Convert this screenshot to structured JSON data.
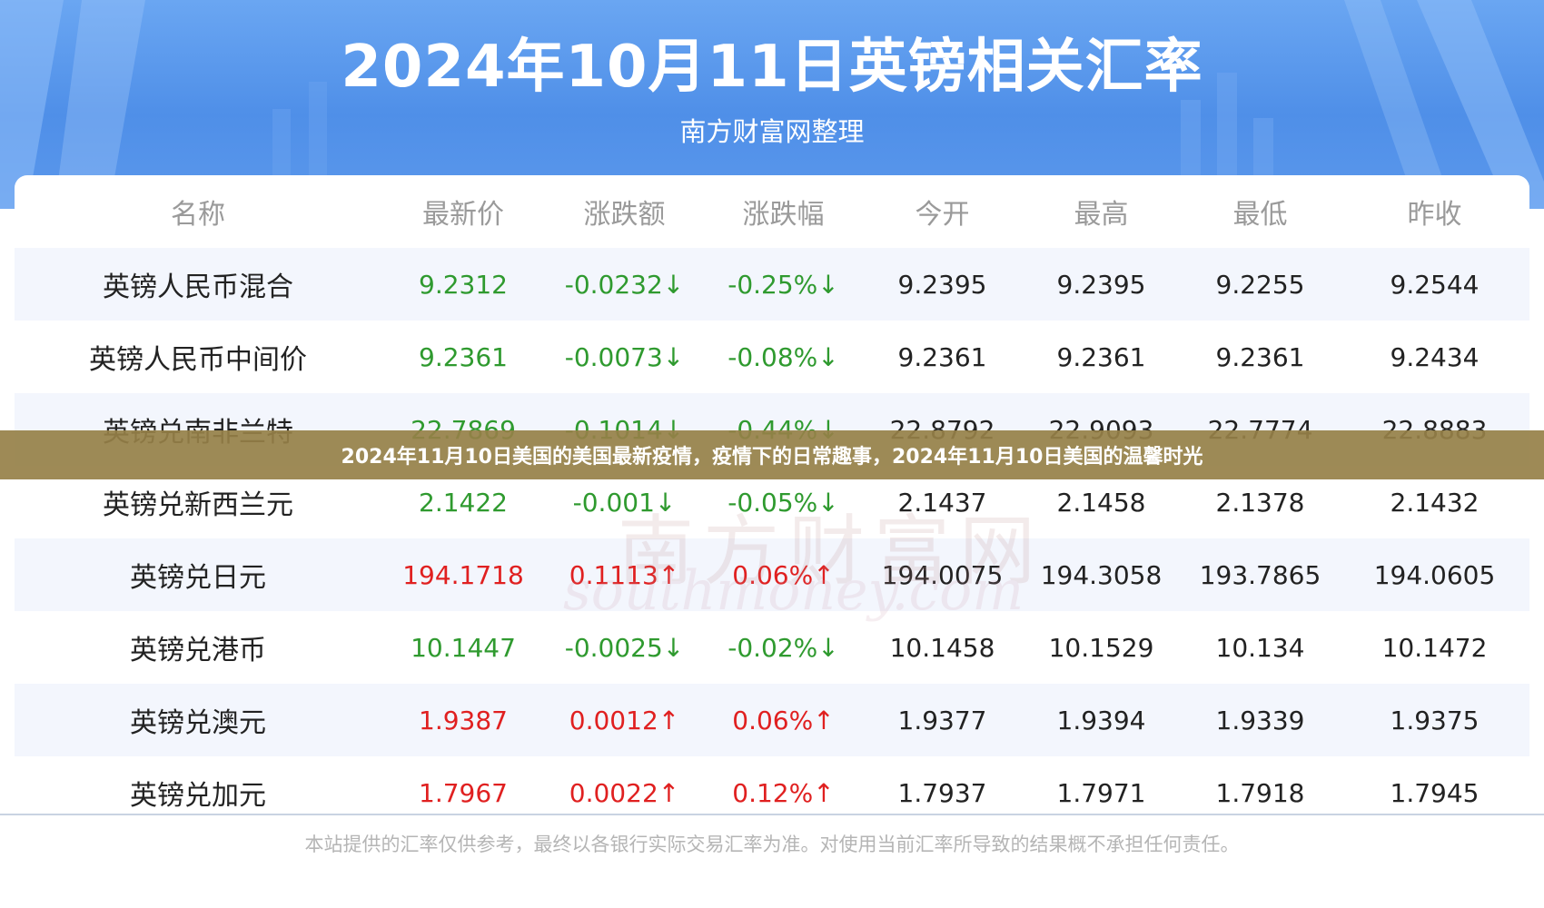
{
  "title": "2024年10月11日英镑相关汇率",
  "subtitle": "南方财富网整理",
  "columns": [
    "名称",
    "最新价",
    "涨跌额",
    "涨跌幅",
    "今开",
    "最高",
    "最低",
    "昨收"
  ],
  "rows": [
    {
      "name": "英镑人民币混合",
      "latest": "9.2312",
      "change": "-0.0232↓",
      "pct": "-0.25%↓",
      "open": "9.2395",
      "high": "9.2395",
      "low": "9.2255",
      "prev": "9.2544",
      "dir": "down"
    },
    {
      "name": "英镑人民币中间价",
      "latest": "9.2361",
      "change": "-0.0073↓",
      "pct": "-0.08%↓",
      "open": "9.2361",
      "high": "9.2361",
      "low": "9.2361",
      "prev": "9.2434",
      "dir": "down"
    },
    {
      "name": "英镑兑南非兰特",
      "latest": "22.7869",
      "change": "-0.1014↓",
      "pct": "-0.44%↓",
      "open": "22.8792",
      "high": "22.9093",
      "low": "22.7774",
      "prev": "22.8883",
      "dir": "down"
    },
    {
      "name": "英镑兑新西兰元",
      "latest": "2.1422",
      "change": "-0.001↓",
      "pct": "-0.05%↓",
      "open": "2.1437",
      "high": "2.1458",
      "low": "2.1378",
      "prev": "2.1432",
      "dir": "down"
    },
    {
      "name": "英镑兑日元",
      "latest": "194.1718",
      "change": "0.1113↑",
      "pct": "0.06%↑",
      "open": "194.0075",
      "high": "194.3058",
      "low": "193.7865",
      "prev": "194.0605",
      "dir": "up"
    },
    {
      "name": "英镑兑港币",
      "latest": "10.1447",
      "change": "-0.0025↓",
      "pct": "-0.02%↓",
      "open": "10.1458",
      "high": "10.1529",
      "low": "10.134",
      "prev": "10.1472",
      "dir": "down"
    },
    {
      "name": "英镑兑澳元",
      "latest": "1.9387",
      "change": "0.0012↑",
      "pct": "0.06%↑",
      "open": "1.9377",
      "high": "1.9394",
      "low": "1.9339",
      "prev": "1.9375",
      "dir": "up"
    },
    {
      "name": "英镑兑加元",
      "latest": "1.7967",
      "change": "0.0022↑",
      "pct": "0.12%↑",
      "open": "1.7937",
      "high": "1.7971",
      "low": "1.7918",
      "prev": "1.7945",
      "dir": "up"
    }
  ],
  "footer": "本站提供的汇率仅供参考，最终以各银行实际交易汇率为准。对使用当前汇率所导致的结果概不承担任何责任。",
  "overlay_caption": "2024年11月10日美国的美国最新疫情，疫情下的日常趣事，2024年11月10日美国的温馨时光",
  "watermark": {
    "cn": "南方财富网",
    "en": "southmoney.com"
  },
  "colors": {
    "up": "#e02020",
    "down": "#2f9a2f",
    "header": "#4f8fe8",
    "overlay": "#968048"
  }
}
